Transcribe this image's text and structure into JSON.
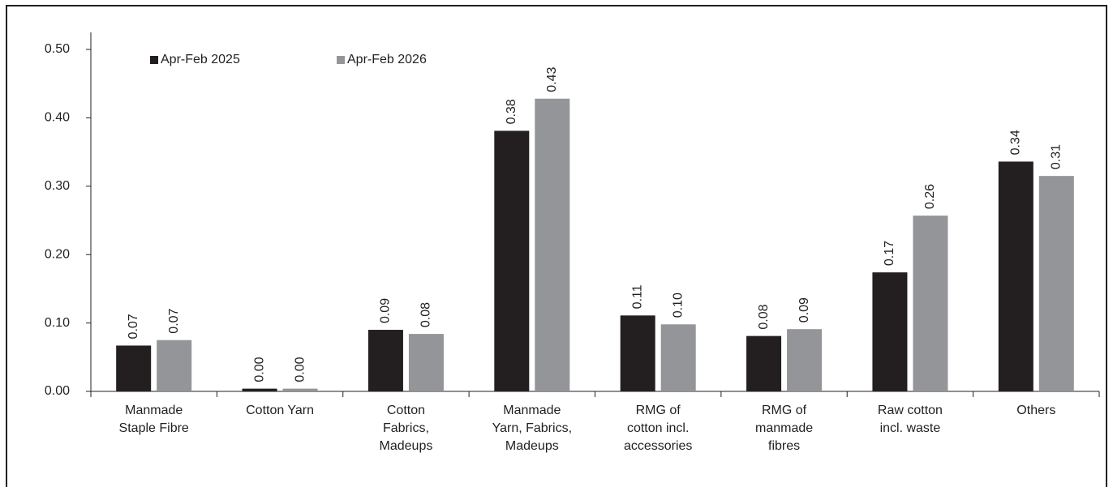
{
  "chart_data": {
    "type": "bar",
    "categories": [
      "Manmade\nStaple Fibre",
      "Cotton Yarn",
      "Cotton\nFabrics,\nMadeups",
      "Manmade\nYarn, Fabrics,\nMadeups",
      "RMG of\ncotton incl.\naccessories",
      "RMG of\nmanmade\nfibres",
      "Raw cotton\nincl. waste",
      "Others"
    ],
    "series": [
      {
        "name": "Apr-Feb 2025",
        "color": "#231f20",
        "values": [
          0.067,
          0.004,
          0.09,
          0.381,
          0.111,
          0.081,
          0.174,
          0.336
        ],
        "value_labels": [
          "0.07",
          "0.00",
          "0.09",
          "0.38",
          "0.11",
          "0.08",
          "0.17",
          "0.34"
        ]
      },
      {
        "name": "Apr-Feb 2026",
        "color": "#939598",
        "values": [
          0.075,
          0.004,
          0.084,
          0.428,
          0.098,
          0.091,
          0.257,
          0.315
        ],
        "value_labels": [
          "0.07",
          "0.00",
          "0.08",
          "0.43",
          "0.10",
          "0.09",
          "0.26",
          "0.31"
        ]
      }
    ],
    "ylim": [
      0,
      0.5
    ],
    "yticks": [
      {
        "value": 0,
        "label": "0.00"
      },
      {
        "value": 0.1,
        "label": "0.10"
      },
      {
        "value": 0.2,
        "label": "0.20"
      },
      {
        "value": 0.3,
        "label": "0.30"
      },
      {
        "value": 0.4,
        "label": "0.40"
      },
      {
        "value": 0.5,
        "label": "0.50"
      }
    ],
    "legend": "top-left",
    "grid": false
  }
}
